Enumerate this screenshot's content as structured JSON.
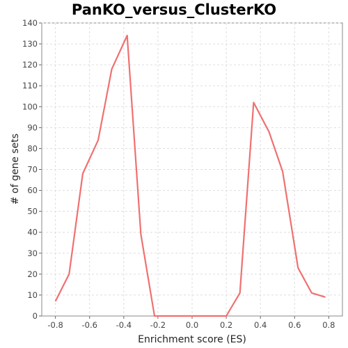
{
  "chart_data": {
    "type": "line",
    "title": "PanKO_versus_ClusterKO",
    "xlabel": "Enrichment score (ES)",
    "ylabel": "# of gene sets",
    "xlim": [
      -0.88,
      0.88
    ],
    "ylim": [
      0,
      140
    ],
    "x_ticks": [
      -0.8,
      -0.6,
      -0.4,
      -0.2,
      0.0,
      0.2,
      0.4,
      0.6,
      0.8
    ],
    "x_tick_labels": [
      "-0.8",
      "-0.6",
      "-0.4",
      "-0.2",
      "0.0",
      "0.2",
      "0.4",
      "0.6",
      "0.8"
    ],
    "y_ticks": [
      0,
      10,
      20,
      30,
      40,
      50,
      60,
      70,
      80,
      90,
      100,
      110,
      120,
      130,
      140
    ],
    "y_tick_labels": [
      "0",
      "10",
      "20",
      "30",
      "40",
      "50",
      "60",
      "70",
      "80",
      "90",
      "100",
      "110",
      "120",
      "130",
      "140"
    ],
    "grid": true,
    "line_color": "#f07070",
    "series": [
      {
        "x": [
          -0.8,
          -0.72,
          -0.64,
          -0.55,
          -0.47,
          -0.38,
          -0.3,
          -0.22,
          0.2,
          0.28,
          0.36,
          0.45,
          0.53,
          0.62,
          0.7,
          0.78
        ],
        "y": [
          7,
          20,
          68,
          84,
          118,
          134,
          39,
          0,
          0,
          11,
          102,
          88,
          69,
          23,
          11,
          9
        ]
      }
    ]
  }
}
